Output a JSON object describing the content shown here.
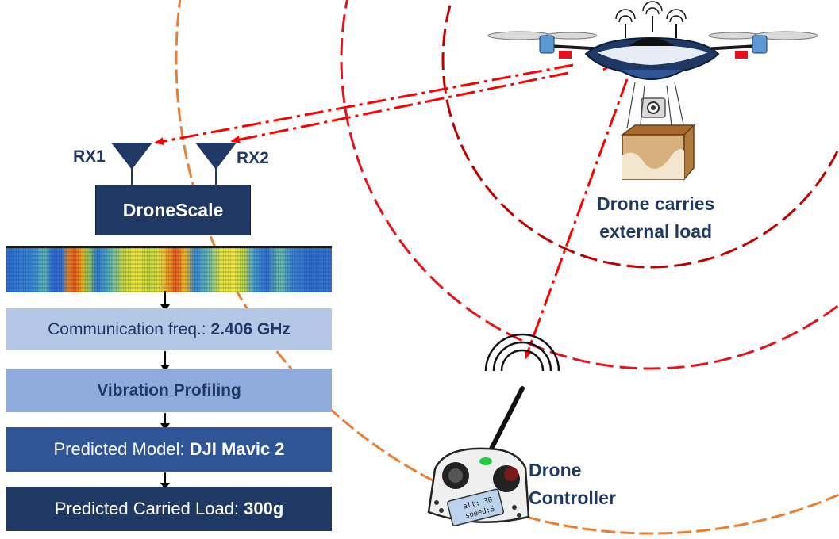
{
  "rx1_label": "RX1",
  "rx2_label": "RX2",
  "dronescale_label": "DroneScale",
  "pipeline": {
    "comm_freq": {
      "label": "Communication freq.: ",
      "value": "2.406 GHz"
    },
    "vibration": "Vibration Profiling",
    "model": {
      "label": "Predicted Model: ",
      "value": "DJI Mavic 2"
    },
    "load": {
      "label": "Predicted Carried Load: ",
      "value": "300g"
    }
  },
  "drone_caption": [
    "Drone carries",
    "external load"
  ],
  "controller_caption": [
    "Drone",
    "Controller"
  ],
  "controller_screen": {
    "line1": "alt: 30",
    "line2": "speed:5"
  },
  "colors": {
    "navy": "#1f3864",
    "box_light": "#b4c7e7",
    "box_mid": "#8faadc",
    "box_dark": "#2f5597",
    "ring_dark": "#c00000",
    "ring_red": "#e8101a",
    "ring_orange": "#ed7d31",
    "signal": "#ff0000"
  }
}
